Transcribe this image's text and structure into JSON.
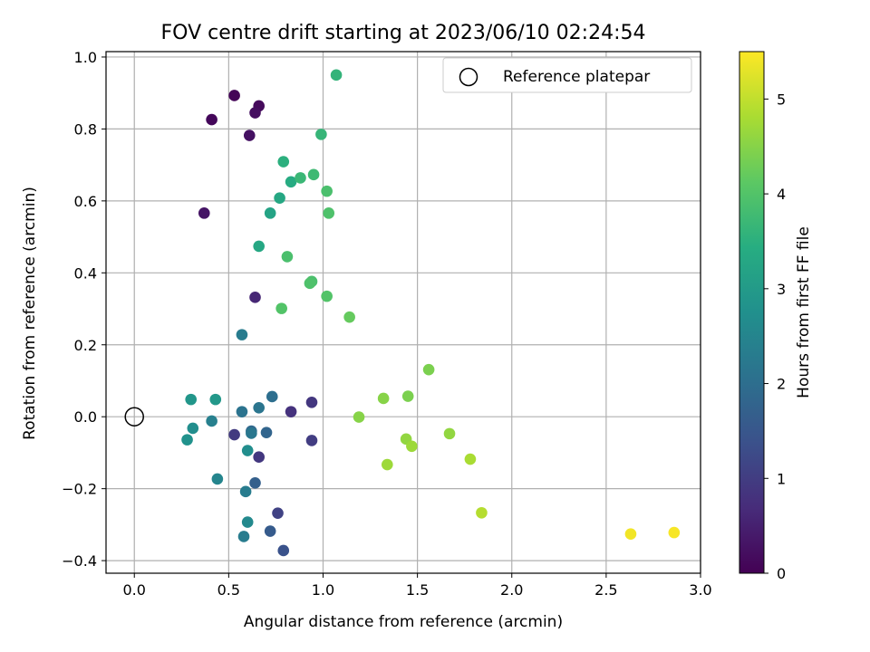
{
  "chart_data": {
    "type": "scatter",
    "title": "FOV centre drift starting at 2023/06/10 02:24:54",
    "xlabel": "Angular distance from reference (arcmin)",
    "ylabel": "Rotation from reference (arcmin)",
    "xlim": [
      -0.15,
      3.0
    ],
    "ylim": [
      -0.435,
      1.015
    ],
    "xticks": [
      0.0,
      0.5,
      1.0,
      1.5,
      2.0,
      2.5,
      3.0
    ],
    "xtick_labels": [
      "0.0",
      "0.5",
      "1.0",
      "1.5",
      "2.0",
      "2.5",
      "3.0"
    ],
    "yticks": [
      -0.4,
      -0.2,
      0.0,
      0.2,
      0.4,
      0.6,
      0.8,
      1.0
    ],
    "ytick_labels": [
      "−0.4",
      "−0.2",
      "0.0",
      "0.2",
      "0.4",
      "0.6",
      "0.8",
      "1.0"
    ],
    "grid": true,
    "legend": {
      "placement": "top-right",
      "entries": [
        "Reference platepar"
      ]
    },
    "colorbar": {
      "label": "Hours from first FF file",
      "range": [
        0,
        5.5
      ],
      "colormap": "viridis",
      "ticks": [
        0,
        1,
        2,
        3,
        4,
        5
      ],
      "tick_labels": [
        "0",
        "1",
        "2",
        "3",
        "4",
        "5"
      ]
    },
    "reference_point": {
      "x": 0.0,
      "y": 0.0,
      "label": "Reference platepar"
    },
    "points": [
      {
        "x": 0.53,
        "y": 0.893,
        "c": 0.05
      },
      {
        "x": 0.41,
        "y": 0.826,
        "c": 0.1
      },
      {
        "x": 0.66,
        "y": 0.864,
        "c": 0.15
      },
      {
        "x": 0.64,
        "y": 0.845,
        "c": 0.2
      },
      {
        "x": 0.61,
        "y": 0.782,
        "c": 0.25
      },
      {
        "x": 0.37,
        "y": 0.566,
        "c": 0.3
      },
      {
        "x": 0.64,
        "y": 0.332,
        "c": 0.6
      },
      {
        "x": 0.83,
        "y": 0.014,
        "c": 0.8
      },
      {
        "x": 0.94,
        "y": 0.04,
        "c": 0.9
      },
      {
        "x": 0.66,
        "y": -0.112,
        "c": 0.9
      },
      {
        "x": 0.53,
        "y": -0.05,
        "c": 0.95
      },
      {
        "x": 0.94,
        "y": -0.066,
        "c": 1.0
      },
      {
        "x": 0.76,
        "y": -0.268,
        "c": 1.1
      },
      {
        "x": 0.79,
        "y": -0.372,
        "c": 1.4
      },
      {
        "x": 0.72,
        "y": -0.318,
        "c": 1.6
      },
      {
        "x": 0.64,
        "y": -0.184,
        "c": 1.7
      },
      {
        "x": 0.7,
        "y": -0.044,
        "c": 1.8
      },
      {
        "x": 0.62,
        "y": -0.04,
        "c": 1.9
      },
      {
        "x": 0.73,
        "y": 0.056,
        "c": 2.0
      },
      {
        "x": 0.57,
        "y": 0.014,
        "c": 2.1
      },
      {
        "x": 0.66,
        "y": 0.025,
        "c": 2.15
      },
      {
        "x": 0.62,
        "y": -0.046,
        "c": 2.2
      },
      {
        "x": 0.58,
        "y": -0.333,
        "c": 2.3
      },
      {
        "x": 0.59,
        "y": -0.208,
        "c": 2.3
      },
      {
        "x": 0.57,
        "y": 0.228,
        "c": 2.3
      },
      {
        "x": 0.41,
        "y": -0.012,
        "c": 2.4
      },
      {
        "x": 0.44,
        "y": -0.173,
        "c": 2.5
      },
      {
        "x": 0.6,
        "y": -0.293,
        "c": 2.6
      },
      {
        "x": 0.6,
        "y": -0.094,
        "c": 2.7
      },
      {
        "x": 0.31,
        "y": -0.032,
        "c": 2.7
      },
      {
        "x": 0.28,
        "y": -0.064,
        "c": 2.8
      },
      {
        "x": 0.3,
        "y": 0.048,
        "c": 2.9
      },
      {
        "x": 0.43,
        "y": 0.048,
        "c": 2.95
      },
      {
        "x": 0.72,
        "y": 0.566,
        "c": 3.2
      },
      {
        "x": 0.66,
        "y": 0.474,
        "c": 3.3
      },
      {
        "x": 0.77,
        "y": 0.608,
        "c": 3.3
      },
      {
        "x": 0.83,
        "y": 0.653,
        "c": 3.4
      },
      {
        "x": 0.79,
        "y": 0.709,
        "c": 3.5
      },
      {
        "x": 1.07,
        "y": 0.95,
        "c": 3.6
      },
      {
        "x": 0.99,
        "y": 0.785,
        "c": 3.65
      },
      {
        "x": 0.88,
        "y": 0.664,
        "c": 3.7
      },
      {
        "x": 0.95,
        "y": 0.673,
        "c": 3.75
      },
      {
        "x": 1.02,
        "y": 0.627,
        "c": 3.9
      },
      {
        "x": 1.03,
        "y": 0.566,
        "c": 3.95
      },
      {
        "x": 0.81,
        "y": 0.445,
        "c": 3.9
      },
      {
        "x": 0.94,
        "y": 0.376,
        "c": 3.9
      },
      {
        "x": 0.93,
        "y": 0.371,
        "c": 3.95
      },
      {
        "x": 1.02,
        "y": 0.335,
        "c": 4.0
      },
      {
        "x": 0.78,
        "y": 0.301,
        "c": 4.0
      },
      {
        "x": 1.14,
        "y": 0.277,
        "c": 4.2
      },
      {
        "x": 1.56,
        "y": 0.131,
        "c": 4.4
      },
      {
        "x": 1.45,
        "y": 0.057,
        "c": 4.4
      },
      {
        "x": 1.32,
        "y": 0.051,
        "c": 4.5
      },
      {
        "x": 1.19,
        "y": -0.001,
        "c": 4.5
      },
      {
        "x": 1.44,
        "y": -0.062,
        "c": 4.6
      },
      {
        "x": 1.67,
        "y": -0.047,
        "c": 4.6
      },
      {
        "x": 1.47,
        "y": -0.082,
        "c": 4.7
      },
      {
        "x": 1.34,
        "y": -0.133,
        "c": 4.7
      },
      {
        "x": 1.78,
        "y": -0.118,
        "c": 4.8
      },
      {
        "x": 1.84,
        "y": -0.267,
        "c": 4.9
      },
      {
        "x": 2.63,
        "y": -0.326,
        "c": 5.4
      },
      {
        "x": 2.86,
        "y": -0.322,
        "c": 5.45
      }
    ]
  }
}
